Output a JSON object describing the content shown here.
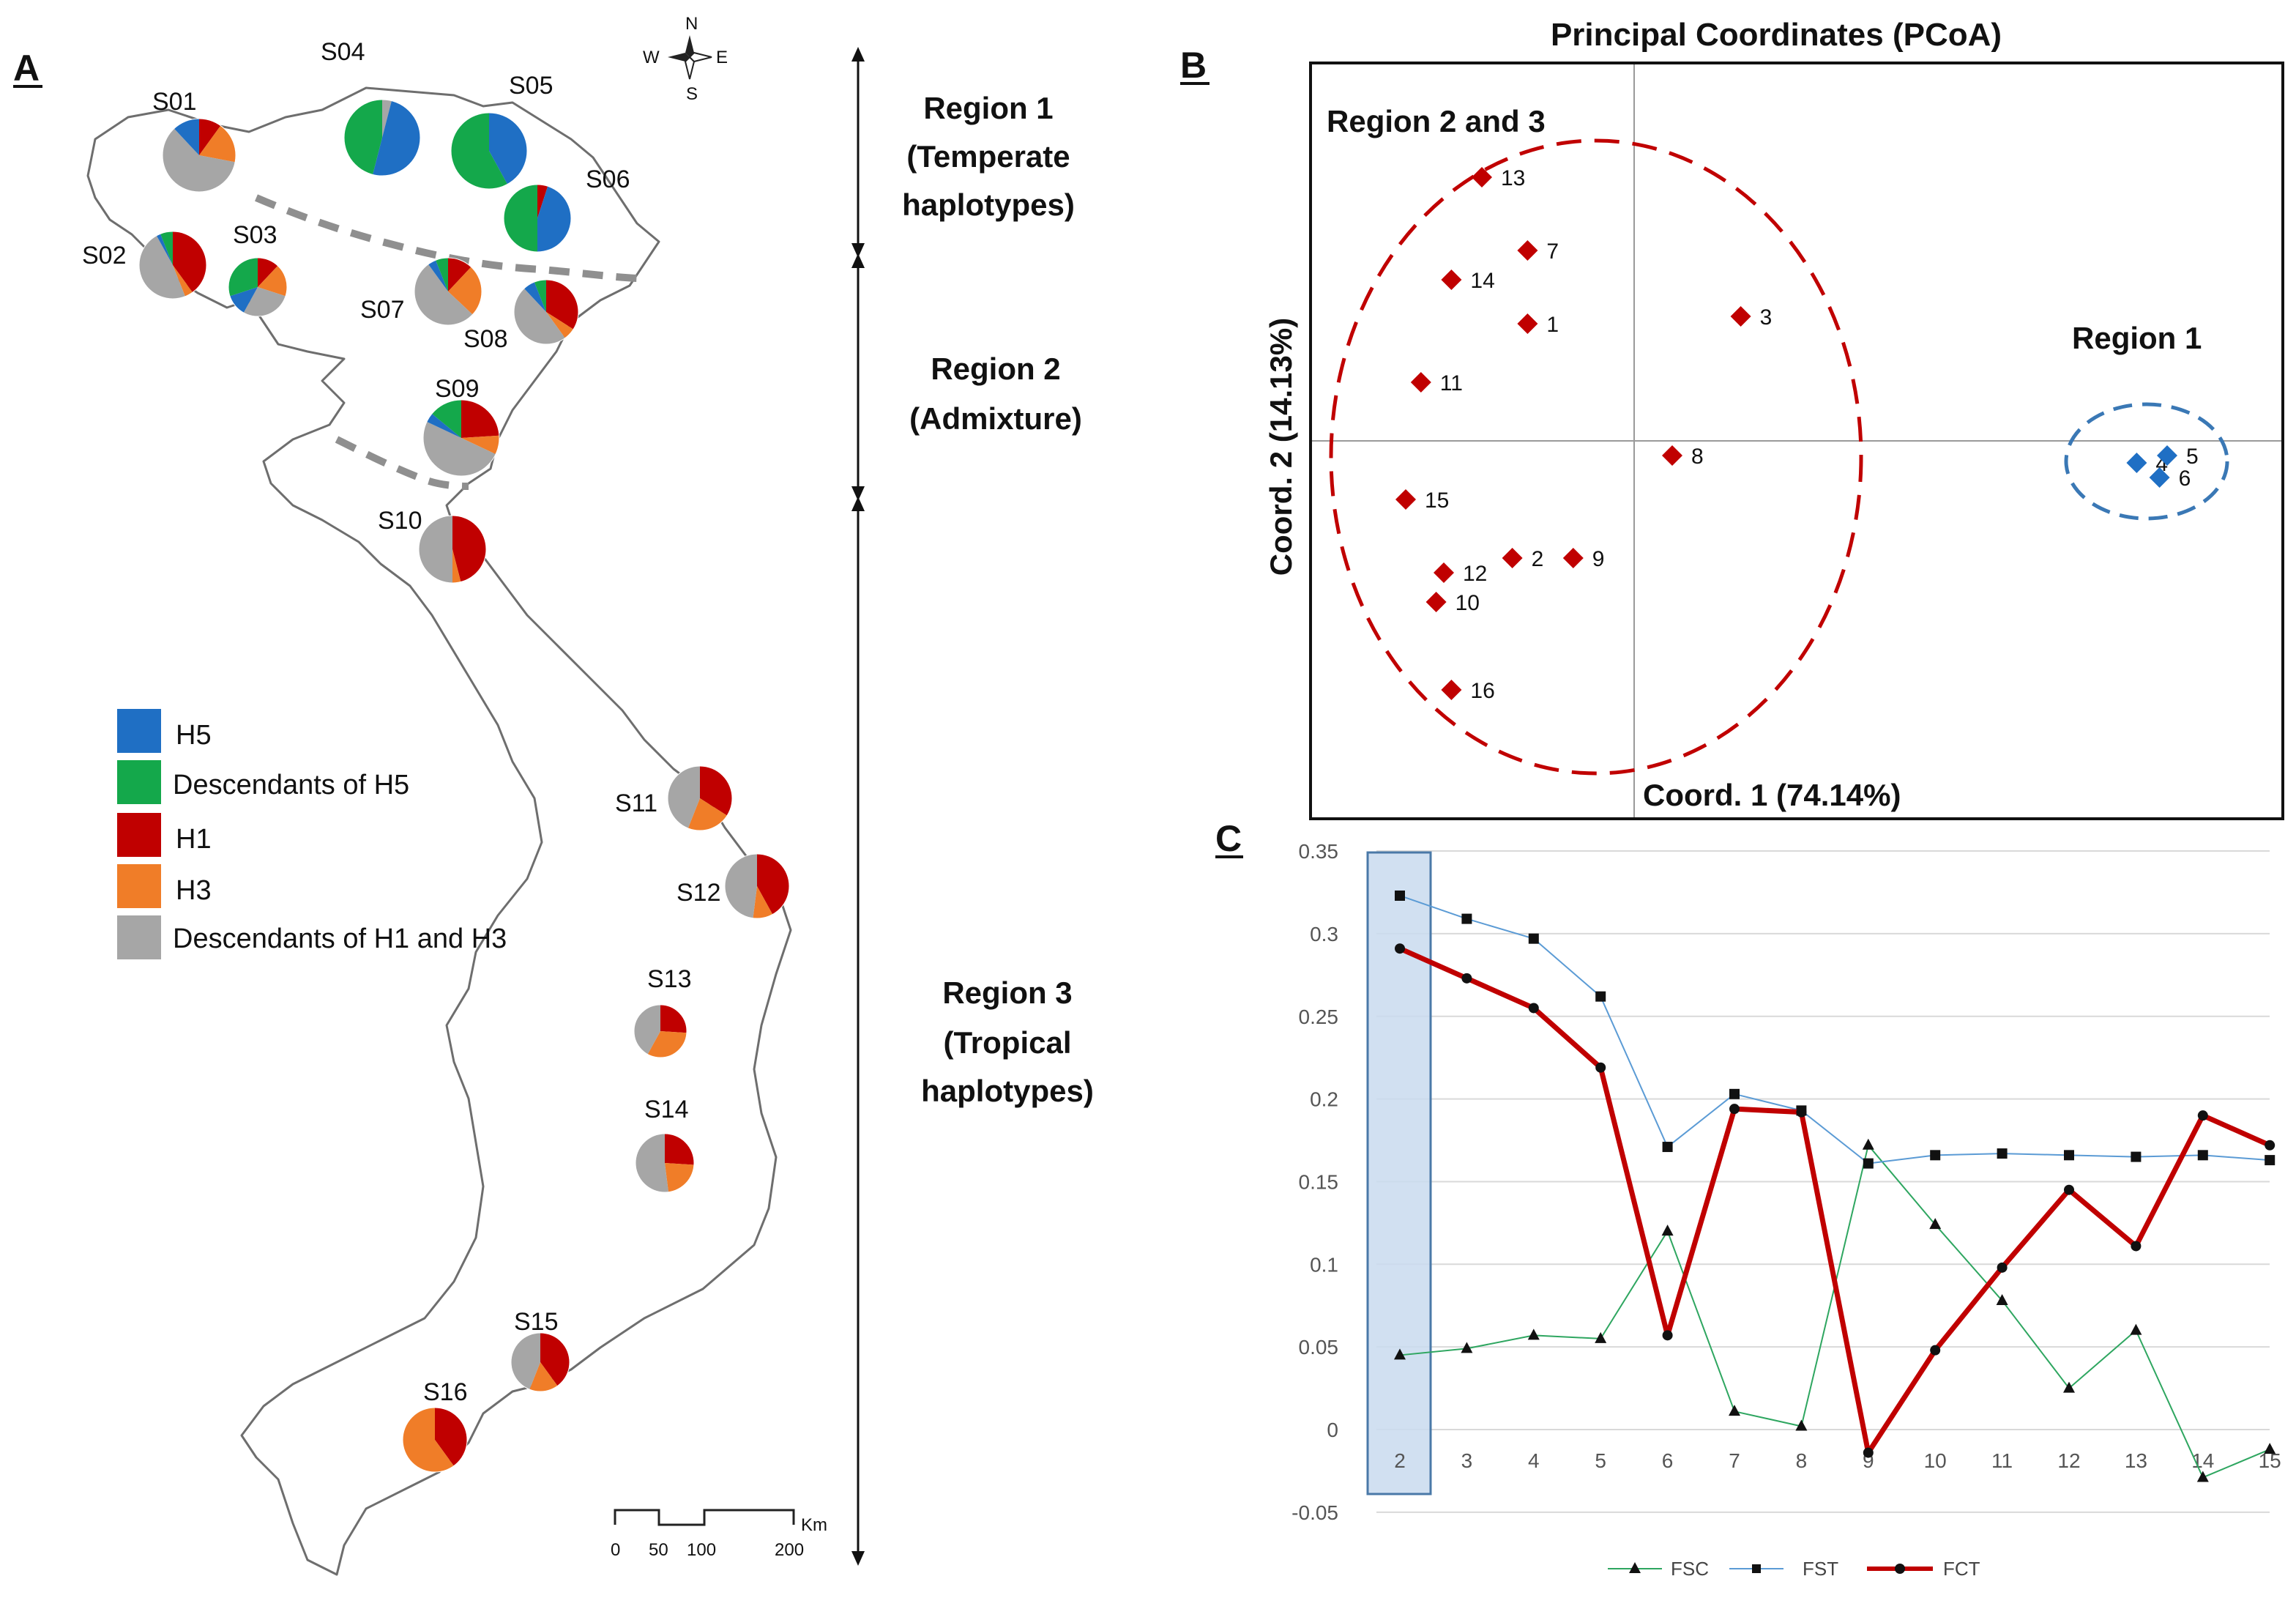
{
  "panels": {
    "a": "A",
    "b": "B",
    "c": "C"
  },
  "colors": {
    "H5": "#1f6fc4",
    "descH5": "#14a84b",
    "H1": "#c00000",
    "H3": "#f07d28",
    "descH1H3": "#a6a6a6"
  },
  "map": {
    "legend": [
      {
        "key": "H5",
        "label": "H5"
      },
      {
        "key": "descH5",
        "label": "Descendants of H5"
      },
      {
        "key": "H1",
        "label": "H1"
      },
      {
        "key": "H3",
        "label": "H3"
      },
      {
        "key": "descH1H3",
        "label": "Descendants of H1 and H3"
      }
    ],
    "sites": [
      {
        "label": "S01",
        "slices": {
          "H5": 0.12,
          "descH5": 0.0,
          "H1": 0.1,
          "H3": 0.18,
          "descH1H3": 0.6
        }
      },
      {
        "label": "S02",
        "slices": {
          "H5": 0.02,
          "descH5": 0.06,
          "H1": 0.4,
          "H3": 0.04,
          "descH1H3": 0.48
        }
      },
      {
        "label": "S03",
        "slices": {
          "H5": 0.12,
          "descH5": 0.3,
          "H1": 0.12,
          "H3": 0.18,
          "descH1H3": 0.28
        }
      },
      {
        "label": "S04",
        "slices": {
          "H5": 0.5,
          "descH5": 0.46,
          "H1": 0.0,
          "H3": 0.0,
          "descH1H3": 0.04
        }
      },
      {
        "label": "S05",
        "slices": {
          "H5": 0.42,
          "descH5": 0.58,
          "H1": 0.0,
          "H3": 0.0,
          "descH1H3": 0.0
        }
      },
      {
        "label": "S06",
        "slices": {
          "H5": 0.45,
          "descH5": 0.5,
          "H1": 0.05,
          "H3": 0.0,
          "descH1H3": 0.0
        }
      },
      {
        "label": "S07",
        "slices": {
          "H5": 0.04,
          "descH5": 0.06,
          "H1": 0.12,
          "H3": 0.25,
          "descH1H3": 0.53
        }
      },
      {
        "label": "S08",
        "slices": {
          "H5": 0.06,
          "descH5": 0.06,
          "H1": 0.34,
          "H3": 0.06,
          "descH1H3": 0.48
        }
      },
      {
        "label": "S09",
        "slices": {
          "H5": 0.04,
          "descH5": 0.14,
          "H1": 0.24,
          "H3": 0.08,
          "descH1H3": 0.5
        }
      },
      {
        "label": "S10",
        "slices": {
          "H5": 0.0,
          "descH5": 0.0,
          "H1": 0.46,
          "H3": 0.04,
          "descH1H3": 0.5
        }
      },
      {
        "label": "S11",
        "slices": {
          "H5": 0.0,
          "descH5": 0.0,
          "H1": 0.34,
          "H3": 0.22,
          "descH1H3": 0.44
        }
      },
      {
        "label": "S12",
        "slices": {
          "H5": 0.0,
          "descH5": 0.0,
          "H1": 0.42,
          "H3": 0.1,
          "descH1H3": 0.48
        }
      },
      {
        "label": "S13",
        "slices": {
          "H5": 0.0,
          "descH5": 0.0,
          "H1": 0.26,
          "H3": 0.32,
          "descH1H3": 0.42
        }
      },
      {
        "label": "S14",
        "slices": {
          "H5": 0.0,
          "descH5": 0.0,
          "H1": 0.26,
          "H3": 0.22,
          "descH1H3": 0.52
        }
      },
      {
        "label": "S15",
        "slices": {
          "H5": 0.0,
          "descH5": 0.0,
          "H1": 0.4,
          "H3": 0.16,
          "descH1H3": 0.44
        }
      },
      {
        "label": "S16",
        "slices": {
          "H5": 0.0,
          "descH5": 0.0,
          "H1": 0.4,
          "H3": 0.6,
          "descH1H3": 0.0
        }
      }
    ],
    "compass": {
      "n": "N",
      "s": "S",
      "e": "E",
      "w": "W"
    },
    "scale": {
      "unit": "Km",
      "ticks": [
        "0",
        "50",
        "100",
        "200"
      ]
    }
  },
  "regions": {
    "r1": [
      "Region 1",
      "(Temperate",
      "haplotypes)"
    ],
    "r2": [
      "Region 2",
      "(Admixture)"
    ],
    "r3": [
      "Region 3",
      "(Tropical",
      "haplotypes)"
    ]
  },
  "chart_data": [
    {
      "type": "scatter",
      "title": "Principal Coordinates (PCoA)",
      "xlabel": "Coord. 1 (74.14%)",
      "ylabel": "Coord. 2 (14.13%)",
      "groups": [
        {
          "name": "Region 2 and 3",
          "color": "#c00000",
          "points": [
            {
              "label": "1",
              "x": -0.14,
              "y": 0.16
            },
            {
              "label": "2",
              "x": -0.16,
              "y": -0.16
            },
            {
              "label": "3",
              "x": 0.14,
              "y": 0.17
            },
            {
              "label": "7",
              "x": -0.14,
              "y": 0.26
            },
            {
              "label": "8",
              "x": 0.05,
              "y": -0.02
            },
            {
              "label": "9",
              "x": -0.08,
              "y": -0.16
            },
            {
              "label": "10",
              "x": -0.26,
              "y": -0.22
            },
            {
              "label": "11",
              "x": -0.28,
              "y": 0.08
            },
            {
              "label": "12",
              "x": -0.25,
              "y": -0.18
            },
            {
              "label": "13",
              "x": -0.2,
              "y": 0.36
            },
            {
              "label": "14",
              "x": -0.24,
              "y": 0.22
            },
            {
              "label": "15",
              "x": -0.3,
              "y": -0.08
            },
            {
              "label": "16",
              "x": -0.24,
              "y": -0.34
            }
          ]
        },
        {
          "name": "Region 1",
          "color": "#1f6fc4",
          "points": [
            {
              "label": "4",
              "x": 0.66,
              "y": -0.03
            },
            {
              "label": "5",
              "x": 0.7,
              "y": -0.02
            },
            {
              "label": "6",
              "x": 0.69,
              "y": -0.05
            }
          ]
        }
      ]
    },
    {
      "type": "line",
      "categories": [
        "2",
        "3",
        "4",
        "5",
        "6",
        "7",
        "8",
        "9",
        "10",
        "11",
        "12",
        "13",
        "14",
        "15"
      ],
      "series": [
        {
          "name": "FSC",
          "color": "#2ea660",
          "marker": "triangle",
          "values": [
            0.045,
            0.049,
            0.057,
            0.055,
            0.12,
            0.011,
            0.002,
            0.172,
            0.124,
            0.078,
            0.025,
            0.06,
            -0.029,
            -0.012
          ]
        },
        {
          "name": "FST",
          "color": "#5b9bd5",
          "marker": "square",
          "values": [
            0.323,
            0.309,
            0.297,
            0.262,
            0.171,
            0.203,
            0.193,
            0.161,
            0.166,
            0.167,
            0.166,
            0.165,
            0.166,
            0.163
          ]
        },
        {
          "name": "FCT",
          "color": "#c00000",
          "marker": "circle",
          "values": [
            0.291,
            0.273,
            0.255,
            0.219,
            0.057,
            0.194,
            0.192,
            -0.014,
            0.048,
            0.098,
            0.145,
            0.111,
            0.19,
            0.172
          ]
        }
      ],
      "yticks": [
        "0.35",
        "0.3",
        "0.25",
        "0.2",
        "0.15",
        "0.1",
        "0.05",
        "0",
        "-0.05"
      ],
      "ylim": [
        -0.05,
        0.35
      ],
      "highlight_category": "2"
    }
  ]
}
